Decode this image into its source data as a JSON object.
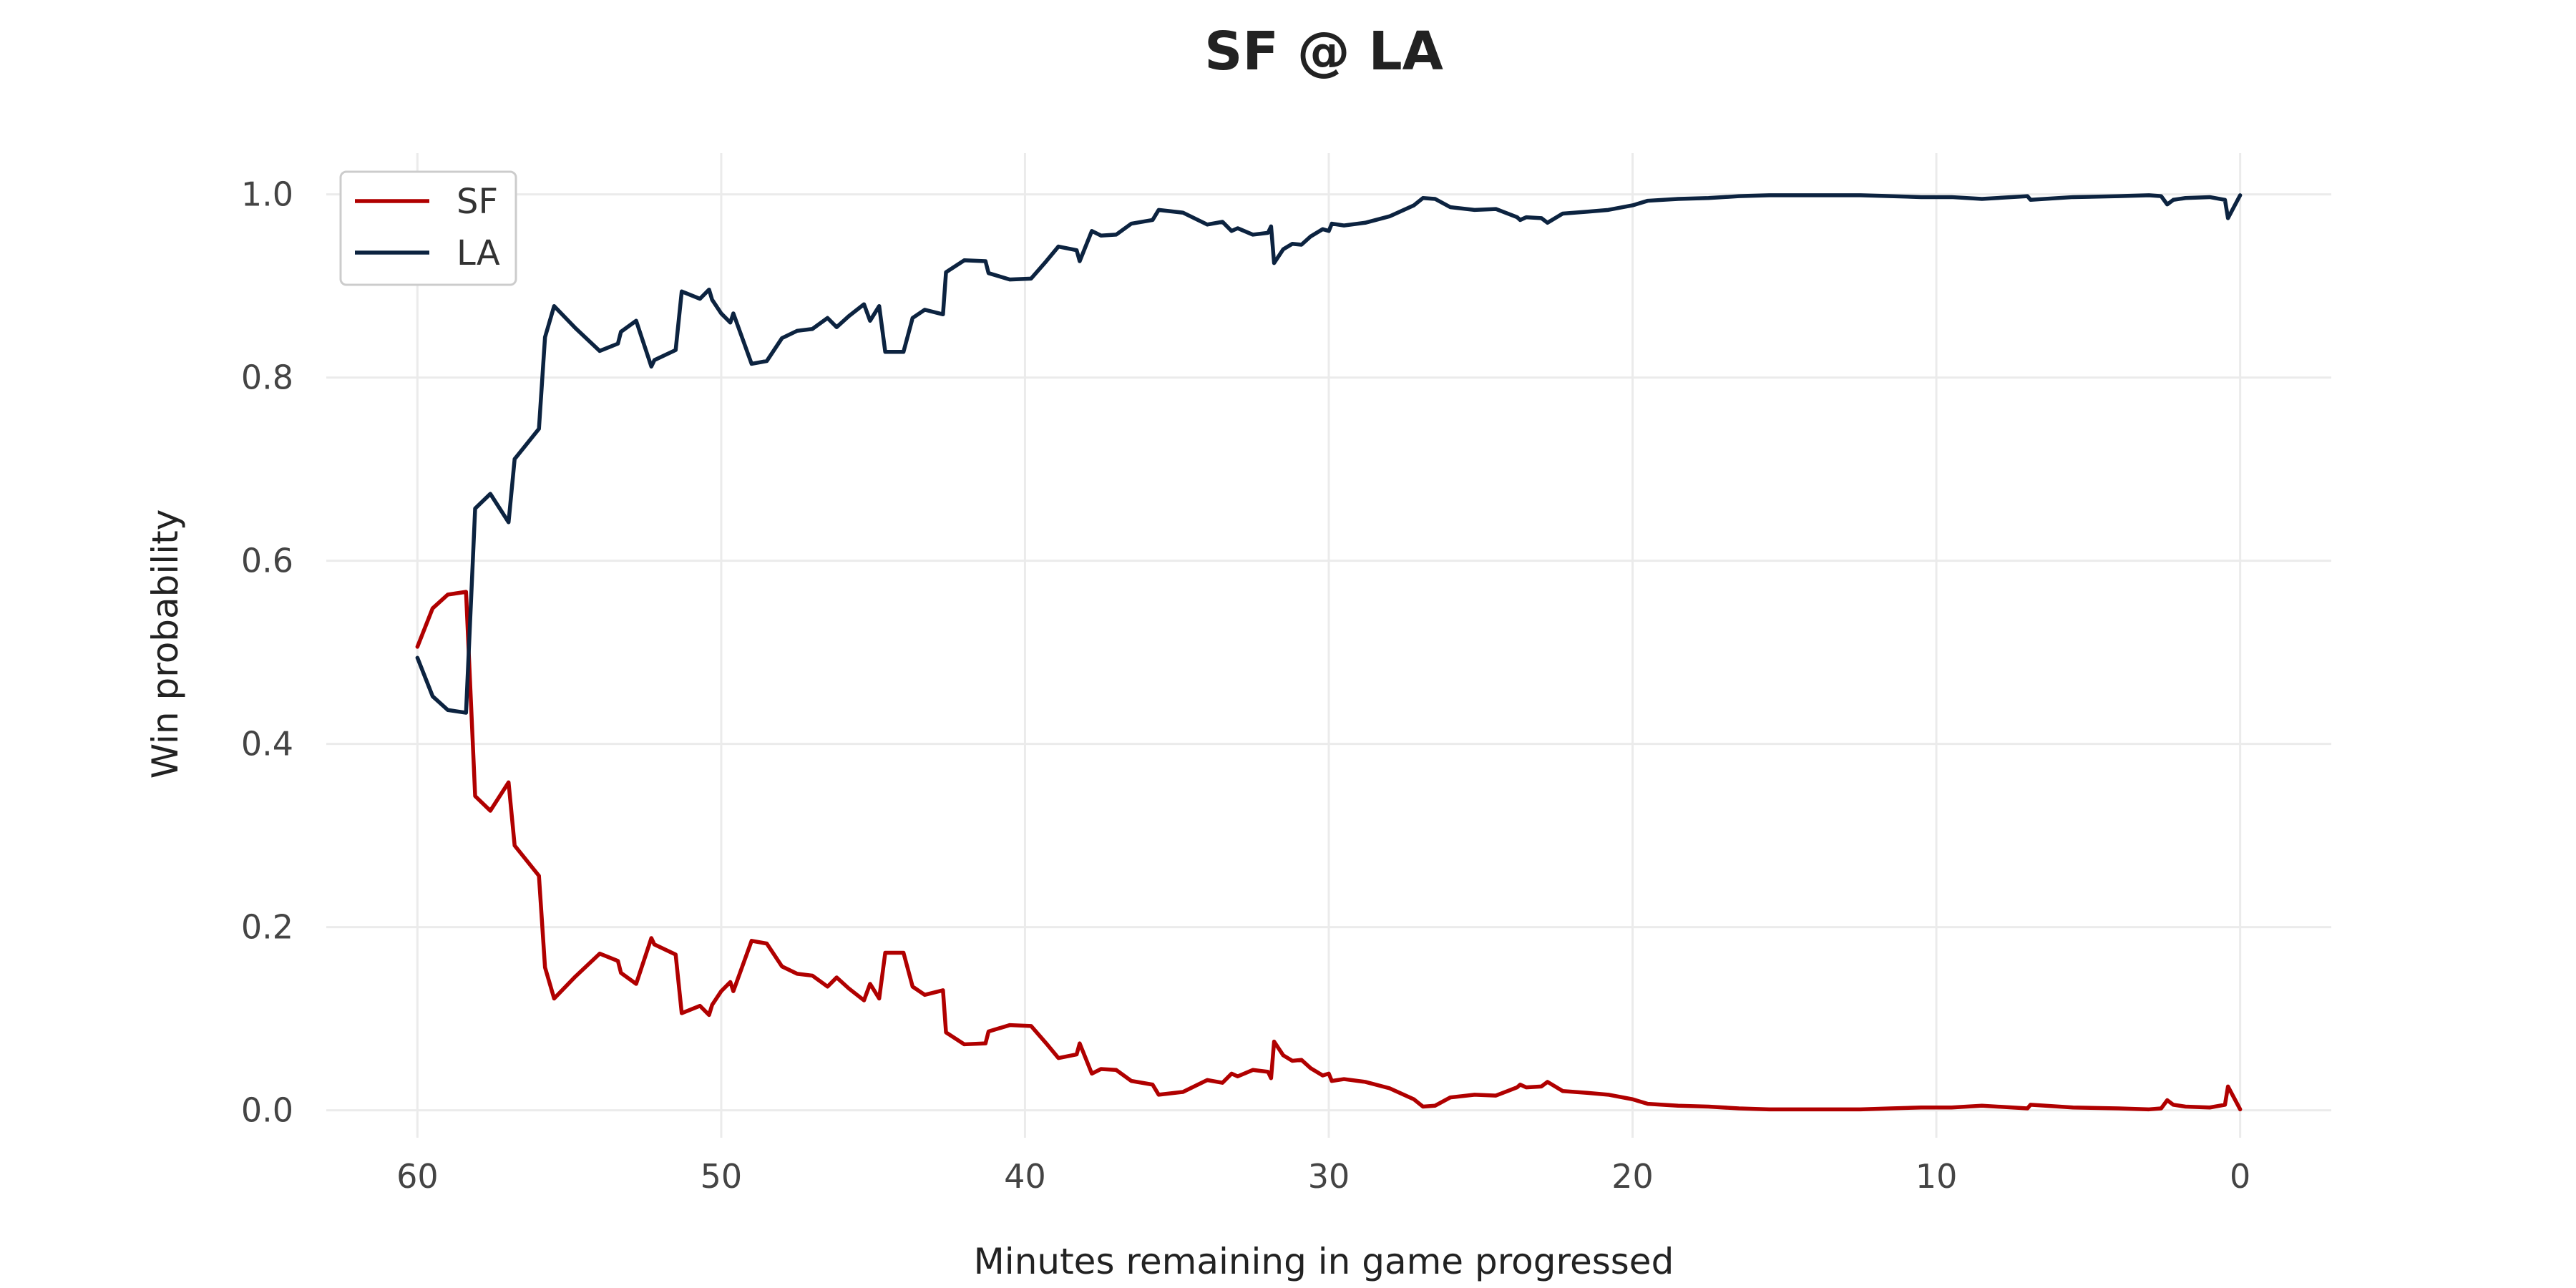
{
  "chart_data": {
    "type": "line",
    "title": "SF @ LA",
    "xlabel": "Minutes remaining in game progressed",
    "ylabel": "Win probability",
    "xlim": [
      63,
      -3
    ],
    "ylim": [
      -0.03,
      1.045
    ],
    "x_ticks": [
      60,
      50,
      40,
      30,
      20,
      10,
      0
    ],
    "x_tick_labels": [
      "60",
      "50",
      "40",
      "30",
      "20",
      "10",
      "0"
    ],
    "y_ticks": [
      0.0,
      0.2,
      0.4,
      0.6,
      0.8,
      1.0
    ],
    "y_tick_labels": [
      "0.0",
      "0.2",
      "0.4",
      "0.6",
      "0.8",
      "1.0"
    ],
    "grid": true,
    "legend_position": "top-left",
    "colors": {
      "SF": "#b00000",
      "LA": "#0c2340"
    },
    "series": [
      {
        "name": "SF",
        "points": [
          [
            60,
            0.506
          ],
          [
            59.5,
            0.548
          ],
          [
            59,
            0.563
          ],
          [
            58.4,
            0.566
          ],
          [
            58.1,
            0.343
          ],
          [
            57.6,
            0.327
          ],
          [
            57.0,
            0.358
          ],
          [
            56.8,
            0.289
          ],
          [
            56.0,
            0.256
          ],
          [
            55.8,
            0.156
          ],
          [
            55.5,
            0.122
          ],
          [
            54.8,
            0.146
          ],
          [
            54.0,
            0.171
          ],
          [
            53.4,
            0.163
          ],
          [
            53.3,
            0.15
          ],
          [
            52.8,
            0.138
          ],
          [
            52.3,
            0.188
          ],
          [
            52.2,
            0.181
          ],
          [
            51.5,
            0.17
          ],
          [
            51.3,
            0.106
          ],
          [
            50.7,
            0.114
          ],
          [
            50.4,
            0.104
          ],
          [
            50.3,
            0.115
          ],
          [
            50.0,
            0.13
          ],
          [
            49.7,
            0.14
          ],
          [
            49.6,
            0.13
          ],
          [
            49.0,
            0.185
          ],
          [
            48.5,
            0.182
          ],
          [
            48.0,
            0.157
          ],
          [
            47.5,
            0.149
          ],
          [
            47.0,
            0.147
          ],
          [
            46.5,
            0.135
          ],
          [
            46.2,
            0.145
          ],
          [
            45.8,
            0.133
          ],
          [
            45.3,
            0.12
          ],
          [
            45.1,
            0.138
          ],
          [
            44.8,
            0.122
          ],
          [
            44.6,
            0.172
          ],
          [
            44.0,
            0.172
          ],
          [
            43.7,
            0.135
          ],
          [
            43.3,
            0.126
          ],
          [
            42.7,
            0.131
          ],
          [
            42.6,
            0.085
          ],
          [
            42.0,
            0.072
          ],
          [
            41.3,
            0.073
          ],
          [
            41.2,
            0.086
          ],
          [
            40.5,
            0.093
          ],
          [
            39.8,
            0.092
          ],
          [
            39.3,
            0.073
          ],
          [
            38.9,
            0.057
          ],
          [
            38.3,
            0.061
          ],
          [
            38.2,
            0.073
          ],
          [
            37.8,
            0.04
          ],
          [
            37.5,
            0.045
          ],
          [
            37.0,
            0.044
          ],
          [
            36.5,
            0.032
          ],
          [
            35.8,
            0.028
          ],
          [
            35.6,
            0.017
          ],
          [
            34.8,
            0.02
          ],
          [
            34.0,
            0.033
          ],
          [
            33.5,
            0.03
          ],
          [
            33.2,
            0.04
          ],
          [
            33.0,
            0.037
          ],
          [
            32.5,
            0.044
          ],
          [
            32.0,
            0.042
          ],
          [
            31.9,
            0.035
          ],
          [
            31.8,
            0.075
          ],
          [
            31.5,
            0.06
          ],
          [
            31.2,
            0.054
          ],
          [
            30.9,
            0.055
          ],
          [
            30.6,
            0.046
          ],
          [
            30.4,
            0.042
          ],
          [
            30.2,
            0.038
          ],
          [
            30.0,
            0.04
          ],
          [
            29.9,
            0.032
          ],
          [
            29.5,
            0.034
          ],
          [
            28.8,
            0.031
          ],
          [
            28.0,
            0.024
          ],
          [
            27.2,
            0.012
          ],
          [
            26.9,
            0.004
          ],
          [
            26.5,
            0.005
          ],
          [
            26.0,
            0.014
          ],
          [
            25.2,
            0.017
          ],
          [
            24.5,
            0.016
          ],
          [
            23.8,
            0.025
          ],
          [
            23.7,
            0.028
          ],
          [
            23.5,
            0.025
          ],
          [
            23.0,
            0.026
          ],
          [
            22.8,
            0.031
          ],
          [
            22.3,
            0.021
          ],
          [
            21.5,
            0.019
          ],
          [
            20.8,
            0.017
          ],
          [
            20.0,
            0.012
          ],
          [
            19.5,
            0.007
          ],
          [
            18.5,
            0.005
          ],
          [
            17.5,
            0.004
          ],
          [
            16.5,
            0.002
          ],
          [
            15.5,
            0.001
          ],
          [
            14.0,
            0.001
          ],
          [
            12.5,
            0.001
          ],
          [
            11.5,
            0.002
          ],
          [
            10.5,
            0.003
          ],
          [
            9.5,
            0.003
          ],
          [
            8.5,
            0.005
          ],
          [
            7.0,
            0.002
          ],
          [
            6.9,
            0.006
          ],
          [
            5.5,
            0.003
          ],
          [
            4.0,
            0.002
          ],
          [
            3.0,
            0.001
          ],
          [
            2.6,
            0.002
          ],
          [
            2.4,
            0.011
          ],
          [
            2.2,
            0.006
          ],
          [
            1.8,
            0.004
          ],
          [
            1.0,
            0.003
          ],
          [
            0.5,
            0.006
          ],
          [
            0.4,
            0.026
          ],
          [
            0.0,
            0.001
          ]
        ]
      },
      {
        "name": "LA",
        "points": [
          [
            60,
            0.494
          ],
          [
            59.5,
            0.452
          ],
          [
            59,
            0.437
          ],
          [
            58.4,
            0.434
          ],
          [
            58.1,
            0.657
          ],
          [
            57.6,
            0.673
          ],
          [
            57.0,
            0.642
          ],
          [
            56.8,
            0.711
          ],
          [
            56.0,
            0.744
          ],
          [
            55.8,
            0.844
          ],
          [
            55.5,
            0.878
          ],
          [
            54.8,
            0.854
          ],
          [
            54.0,
            0.829
          ],
          [
            53.4,
            0.837
          ],
          [
            53.3,
            0.85
          ],
          [
            52.8,
            0.862
          ],
          [
            52.3,
            0.812
          ],
          [
            52.2,
            0.819
          ],
          [
            51.5,
            0.83
          ],
          [
            51.3,
            0.894
          ],
          [
            50.7,
            0.886
          ],
          [
            50.4,
            0.896
          ],
          [
            50.3,
            0.885
          ],
          [
            50.0,
            0.87
          ],
          [
            49.7,
            0.86
          ],
          [
            49.6,
            0.87
          ],
          [
            49.0,
            0.815
          ],
          [
            48.5,
            0.818
          ],
          [
            48.0,
            0.843
          ],
          [
            47.5,
            0.851
          ],
          [
            47.0,
            0.853
          ],
          [
            46.5,
            0.865
          ],
          [
            46.2,
            0.855
          ],
          [
            45.8,
            0.867
          ],
          [
            45.3,
            0.88
          ],
          [
            45.1,
            0.862
          ],
          [
            44.8,
            0.878
          ],
          [
            44.6,
            0.828
          ],
          [
            44.0,
            0.828
          ],
          [
            43.7,
            0.865
          ],
          [
            43.3,
            0.874
          ],
          [
            42.7,
            0.869
          ],
          [
            42.6,
            0.915
          ],
          [
            42.0,
            0.928
          ],
          [
            41.3,
            0.927
          ],
          [
            41.2,
            0.914
          ],
          [
            40.5,
            0.907
          ],
          [
            39.8,
            0.908
          ],
          [
            39.3,
            0.927
          ],
          [
            38.9,
            0.943
          ],
          [
            38.3,
            0.939
          ],
          [
            38.2,
            0.927
          ],
          [
            37.8,
            0.96
          ],
          [
            37.5,
            0.955
          ],
          [
            37.0,
            0.956
          ],
          [
            36.5,
            0.968
          ],
          [
            35.8,
            0.972
          ],
          [
            35.6,
            0.983
          ],
          [
            34.8,
            0.98
          ],
          [
            34.0,
            0.967
          ],
          [
            33.5,
            0.97
          ],
          [
            33.2,
            0.96
          ],
          [
            33.0,
            0.963
          ],
          [
            32.5,
            0.956
          ],
          [
            32.0,
            0.958
          ],
          [
            31.9,
            0.965
          ],
          [
            31.8,
            0.925
          ],
          [
            31.5,
            0.94
          ],
          [
            31.2,
            0.946
          ],
          [
            30.9,
            0.945
          ],
          [
            30.6,
            0.954
          ],
          [
            30.4,
            0.958
          ],
          [
            30.2,
            0.962
          ],
          [
            30.0,
            0.96
          ],
          [
            29.9,
            0.968
          ],
          [
            29.5,
            0.966
          ],
          [
            28.8,
            0.969
          ],
          [
            28.0,
            0.976
          ],
          [
            27.2,
            0.988
          ],
          [
            26.9,
            0.996
          ],
          [
            26.5,
            0.995
          ],
          [
            26.0,
            0.986
          ],
          [
            25.2,
            0.983
          ],
          [
            24.5,
            0.984
          ],
          [
            23.8,
            0.975
          ],
          [
            23.7,
            0.972
          ],
          [
            23.5,
            0.975
          ],
          [
            23.0,
            0.974
          ],
          [
            22.8,
            0.969
          ],
          [
            22.3,
            0.979
          ],
          [
            21.5,
            0.981
          ],
          [
            20.8,
            0.983
          ],
          [
            20.0,
            0.988
          ],
          [
            19.5,
            0.993
          ],
          [
            18.5,
            0.995
          ],
          [
            17.5,
            0.996
          ],
          [
            16.5,
            0.998
          ],
          [
            15.5,
            0.999
          ],
          [
            14.0,
            0.999
          ],
          [
            12.5,
            0.999
          ],
          [
            11.5,
            0.998
          ],
          [
            10.5,
            0.997
          ],
          [
            9.5,
            0.997
          ],
          [
            8.5,
            0.995
          ],
          [
            7.0,
            0.998
          ],
          [
            6.9,
            0.994
          ],
          [
            5.5,
            0.997
          ],
          [
            4.0,
            0.998
          ],
          [
            3.0,
            0.999
          ],
          [
            2.6,
            0.998
          ],
          [
            2.4,
            0.989
          ],
          [
            2.2,
            0.994
          ],
          [
            1.8,
            0.996
          ],
          [
            1.0,
            0.997
          ],
          [
            0.5,
            0.994
          ],
          [
            0.4,
            0.974
          ],
          [
            0.0,
            0.999
          ]
        ]
      }
    ]
  }
}
